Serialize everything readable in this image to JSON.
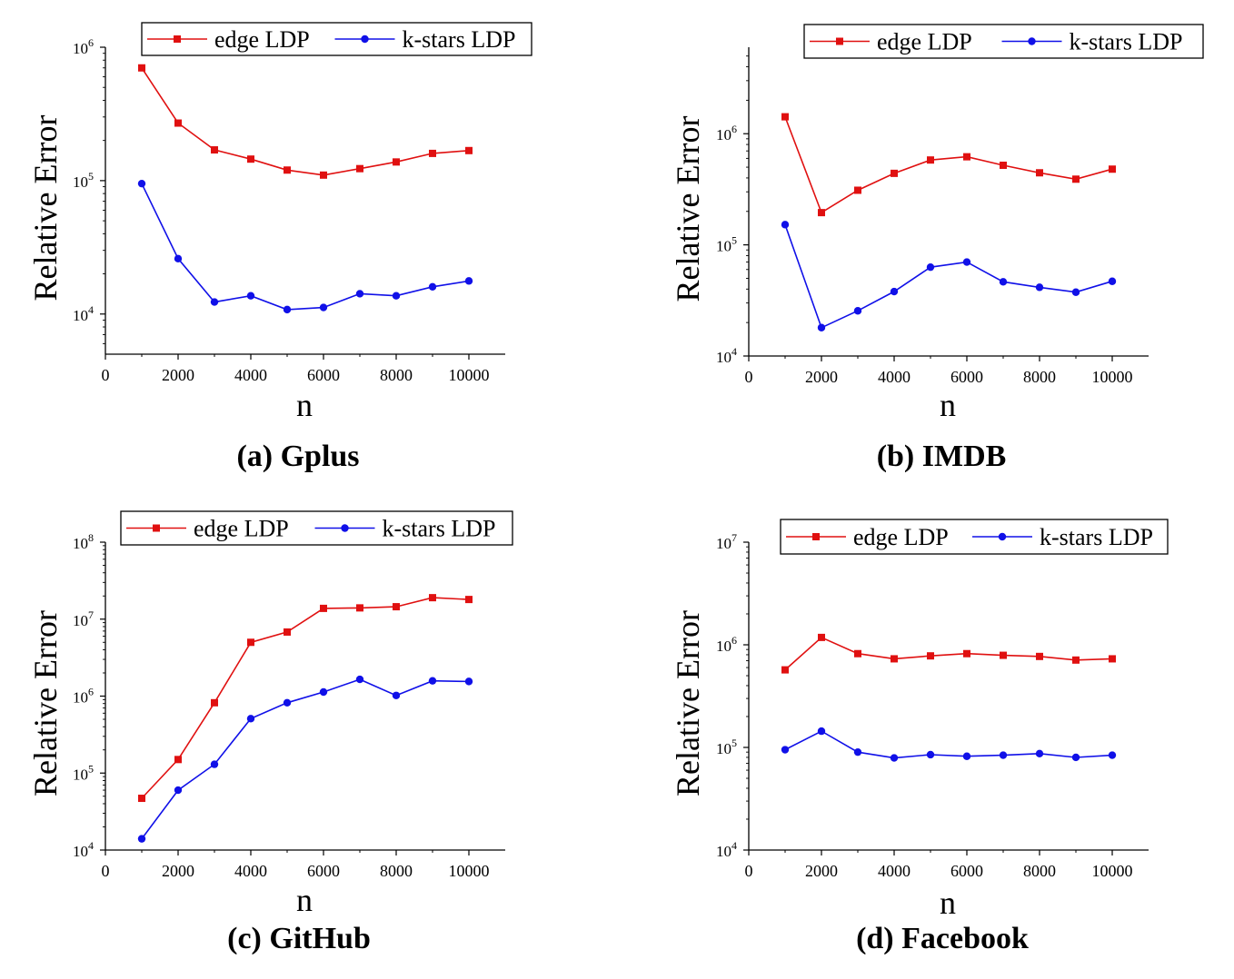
{
  "chart_data": [
    {
      "type": "line",
      "caption": "(a) Gplus",
      "xlabel": "n",
      "ylabel": "Relative Error",
      "yscale": "log",
      "xlim": [
        0,
        11000
      ],
      "ylim": [
        5000,
        1000000
      ],
      "xticks": [
        0,
        2000,
        4000,
        6000,
        8000,
        10000
      ],
      "yticks": [
        {
          "value": 10000,
          "base": "10",
          "exp": "4"
        },
        {
          "value": 100000,
          "base": "10",
          "exp": "5"
        },
        {
          "value": 1000000,
          "base": "10",
          "exp": "6"
        }
      ],
      "legend_position": "top",
      "x": [
        1000,
        2000,
        3000,
        4000,
        5000,
        6000,
        7000,
        8000,
        9000,
        10000
      ],
      "series": [
        {
          "name": "edge LDP",
          "color": "#e01010",
          "marker": "square",
          "values": [
            700000,
            270000,
            170000,
            145000,
            120000,
            110000,
            123000,
            138000,
            160000,
            168000
          ]
        },
        {
          "name": "k-stars LDP",
          "color": "#1010e8",
          "marker": "circle",
          "values": [
            95000,
            26000,
            12300,
            13700,
            10800,
            11200,
            14200,
            13700,
            16000,
            17700
          ]
        }
      ]
    },
    {
      "type": "line",
      "caption": "(b) IMDB",
      "xlabel": "n",
      "ylabel": "Relative Error",
      "yscale": "log",
      "xlim": [
        0,
        11000
      ],
      "ylim": [
        10000,
        6000000
      ],
      "xticks": [
        0,
        2000,
        4000,
        6000,
        8000,
        10000
      ],
      "yticks": [
        {
          "value": 10000,
          "base": "10",
          "exp": "4"
        },
        {
          "value": 100000,
          "base": "10",
          "exp": "5"
        },
        {
          "value": 1000000,
          "base": "10",
          "exp": "6"
        }
      ],
      "legend_position": "top",
      "x": [
        1000,
        2000,
        3000,
        4000,
        5000,
        6000,
        7000,
        8000,
        9000,
        10000
      ],
      "series": [
        {
          "name": "edge LDP",
          "color": "#e01010",
          "marker": "square",
          "values": [
            1420000,
            195000,
            310000,
            440000,
            580000,
            620000,
            520000,
            445000,
            390000,
            480000
          ]
        },
        {
          "name": "k-stars LDP",
          "color": "#1010e8",
          "marker": "circle",
          "values": [
            152000,
            18000,
            25500,
            38000,
            63000,
            70000,
            46500,
            41500,
            37500,
            47000
          ]
        }
      ]
    },
    {
      "type": "line",
      "caption": "(c) GitHub",
      "xlabel": "n",
      "ylabel": "Relative Error",
      "yscale": "log",
      "xlim": [
        0,
        11000
      ],
      "ylim": [
        10000,
        100000000
      ],
      "xticks": [
        0,
        2000,
        4000,
        6000,
        8000,
        10000
      ],
      "yticks": [
        {
          "value": 10000,
          "base": "10",
          "exp": "4"
        },
        {
          "value": 100000,
          "base": "10",
          "exp": "5"
        },
        {
          "value": 1000000,
          "base": "10",
          "exp": "6"
        },
        {
          "value": 10000000,
          "base": "10",
          "exp": "7"
        },
        {
          "value": 100000000,
          "base": "10",
          "exp": "8"
        }
      ],
      "legend_position": "top",
      "x": [
        1000,
        2000,
        3000,
        4000,
        5000,
        6000,
        7000,
        8000,
        9000,
        10000
      ],
      "series": [
        {
          "name": "edge LDP",
          "color": "#e01010",
          "marker": "square",
          "values": [
            47000,
            150000,
            820000,
            5000000,
            6800000,
            13800000,
            14000000,
            14500000,
            19000000,
            18000000
          ]
        },
        {
          "name": "k-stars LDP",
          "color": "#1010e8",
          "marker": "circle",
          "values": [
            14000,
            60000,
            130000,
            510000,
            820000,
            1130000,
            1650000,
            1020000,
            1580000,
            1550000
          ]
        }
      ]
    },
    {
      "type": "line",
      "caption": "(d) Facebook",
      "xlabel": "n",
      "ylabel": "Relative Error",
      "yscale": "log",
      "xlim": [
        0,
        11000
      ],
      "ylim": [
        10000,
        10000000
      ],
      "xticks": [
        0,
        2000,
        4000,
        6000,
        8000,
        10000
      ],
      "yticks": [
        {
          "value": 10000,
          "base": "10",
          "exp": "4"
        },
        {
          "value": 100000,
          "base": "10",
          "exp": "5"
        },
        {
          "value": 1000000,
          "base": "10",
          "exp": "6"
        },
        {
          "value": 10000000,
          "base": "10",
          "exp": "7"
        }
      ],
      "legend_position": "top",
      "x": [
        1000,
        2000,
        3000,
        4000,
        5000,
        6000,
        7000,
        8000,
        9000,
        10000
      ],
      "series": [
        {
          "name": "edge LDP",
          "color": "#e01010",
          "marker": "square",
          "values": [
            570000,
            1180000,
            820000,
            730000,
            780000,
            820000,
            790000,
            770000,
            710000,
            730000
          ]
        },
        {
          "name": "k-stars LDP",
          "color": "#1010e8",
          "marker": "circle",
          "values": [
            95000,
            144000,
            90000,
            79000,
            85000,
            82000,
            84000,
            87000,
            80000,
            84000
          ]
        }
      ]
    }
  ]
}
